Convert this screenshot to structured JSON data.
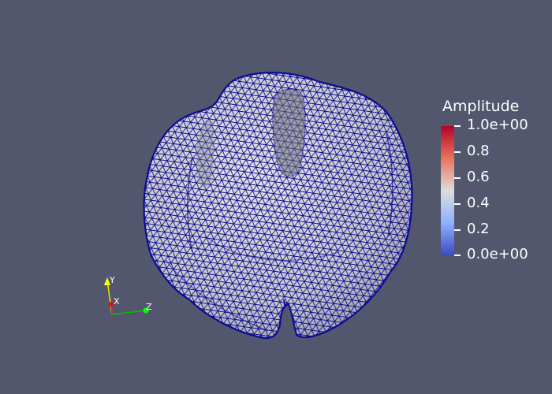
{
  "legend": {
    "title": "Amplitude",
    "ticks": [
      {
        "label": "1.0e+00",
        "value": 1.0
      },
      {
        "label": "0.8",
        "value": 0.8
      },
      {
        "label": "0.6",
        "value": 0.6
      },
      {
        "label": "0.4",
        "value": 0.4
      },
      {
        "label": "0.2",
        "value": 0.2
      },
      {
        "label": "0.0e+00",
        "value": 0.0
      }
    ],
    "colormap": "cool-to-warm",
    "colors": {
      "high": "#b40426",
      "mid": "#dddddd",
      "low": "#3b4cc0"
    }
  },
  "orientation_axes": {
    "x_label": "X",
    "y_label": "Y",
    "z_label": "Z",
    "x_color": "#ff0000",
    "y_color": "#ffff00",
    "z_color": "#00ff00"
  },
  "colors": {
    "background": "#52576e",
    "surface": "#d9d9da",
    "wireframe": "#0c0c92"
  }
}
